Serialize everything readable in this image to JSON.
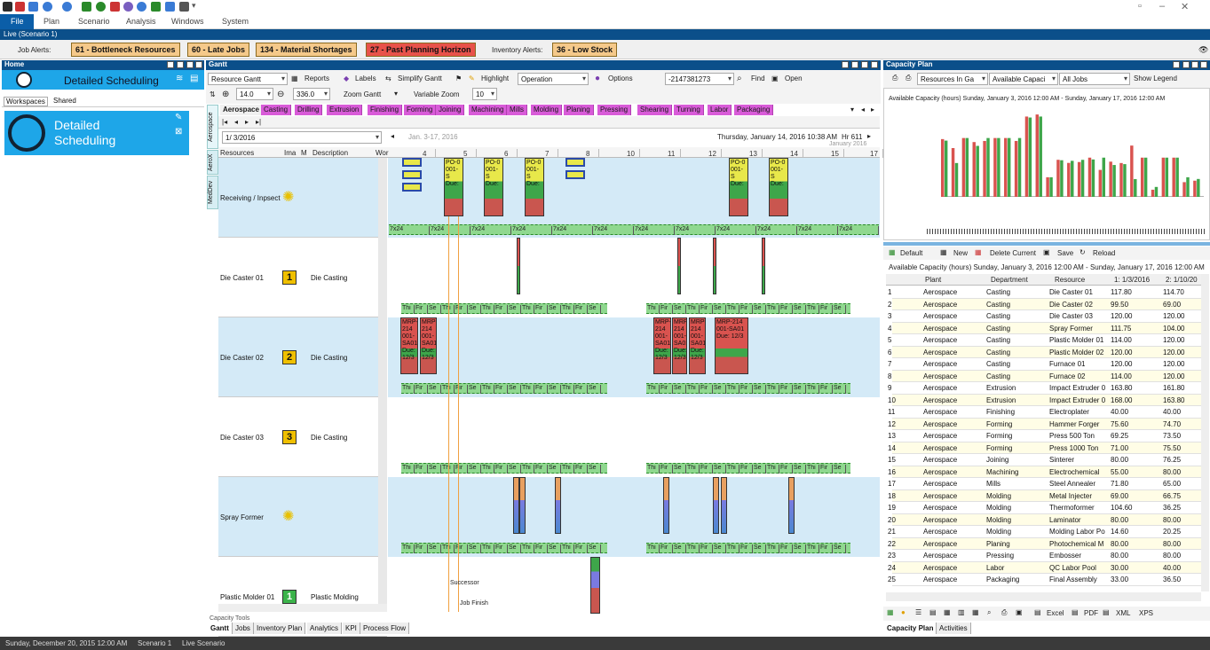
{
  "menu": {
    "file": "File",
    "items": [
      "Plan",
      "Scenario",
      "Analysis",
      "Windows",
      "System"
    ]
  },
  "live_bar": "Live (Scenario 1)",
  "alerts": {
    "job_label": "Job Alerts:",
    "inventory_label": "Inventory Alerts:",
    "job_alerts": [
      {
        "label": "61 - Bottleneck Resources",
        "color": "#f5c98a"
      },
      {
        "label": "60 - Late Jobs",
        "color": "#f5c98a"
      },
      {
        "label": "134 - Material Shortages",
        "color": "#f5c98a"
      },
      {
        "label": "27 - Past Planning Horizon",
        "color": "#e8524a"
      }
    ],
    "inventory_alerts": [
      {
        "label": "36 - Low Stock",
        "color": "#f5c98a"
      }
    ]
  },
  "home": {
    "title": "Home",
    "banner": "Detailed Scheduling",
    "tabs": [
      "Workspaces",
      "Shared"
    ],
    "tile": "Detailed Scheduling"
  },
  "gantt": {
    "title": "Gantt",
    "view_select": "Resource Gantt",
    "toolbar": [
      "Reports",
      "Labels",
      "Simplify Gantt",
      "Highlight"
    ],
    "highlight_select": "Operation",
    "options": "Options",
    "job_field": "-2147381273",
    "find": "Find",
    "open": "Open",
    "zoom_value1": "14.0",
    "zoom_value2": "336.0",
    "zoom_gantt": "Zoom Gantt",
    "variable_zoom": "Variable Zoom",
    "variable_zoom_value": "10",
    "plant_tabs": [
      "Aerospace",
      "Casting",
      "Drilling",
      "Extrusion",
      "Finishing",
      "Forming",
      "Joining",
      "Machining",
      "Mills",
      "Molding",
      "Planing",
      "Pressing",
      "Shearing",
      "Turning",
      "Labor",
      "Packaging"
    ],
    "side_tabs": [
      "Aerospace",
      "AeroX",
      "MedDev"
    ],
    "date_picker": "1/ 3/2016",
    "range_label": "Jan. 3-17, 2016",
    "current_date": "Thursday, January 14, 2016 10:38 AM",
    "hr_label": "Hr 611",
    "month_label": "January 2016",
    "columns": [
      "Resources",
      "Ima",
      "M",
      "Description",
      "Wor"
    ],
    "day_ticks": [
      "4",
      "5",
      "6",
      "7",
      "8",
      "10",
      "11",
      "12",
      "13",
      "14",
      "15",
      "17"
    ],
    "resources": [
      {
        "name": "Receiving / Inpsect",
        "badge": "gear",
        "desc": ""
      },
      {
        "name": "Die Caster 01",
        "badge": "1",
        "desc": "Die Casting"
      },
      {
        "name": "Die Caster 02",
        "badge": "2",
        "desc": "Die Casting"
      },
      {
        "name": "Die Caster 03",
        "badge": "3",
        "desc": "Die Casting"
      },
      {
        "name": "Spray Former",
        "badge": "gear",
        "desc": ""
      },
      {
        "name": "Plastic Molder 01",
        "badge": "1",
        "desc": "Plastic Molding"
      }
    ],
    "shift_7x24": "7x24",
    "shift_labels": [
      "Thi",
      "Fir",
      "Se"
    ],
    "mrp_label": "MRP-214 001-SA01 Due: 12/3",
    "po_label": "PO-0 001-S Due:",
    "successor": "Successor",
    "job_finish": "Job Finish",
    "capacity_tools": "Capacity Tools",
    "bottom_tabs": [
      "Gantt",
      "Jobs",
      "Inventory Plan",
      "Analytics",
      "KPI",
      "Process Flow"
    ]
  },
  "capacity": {
    "title": "Capacity Plan",
    "selects": [
      "Resources In Ga",
      "Available Capaci",
      "All Jobs"
    ],
    "show_legend": "Show Legend",
    "chart_title": "Available Capacity (hours) Sunday, January 3, 2016 12:00 AM - Sunday, January 17, 2016 12:00 AM",
    "toolbar": [
      "Default",
      "New",
      "Delete Current",
      "Save",
      "Reload"
    ],
    "grid_title": "Available Capacity (hours) Sunday, January 3, 2016 12:00 AM - Sunday, January 17, 2016 12:00 AM",
    "columns": [
      "Plant",
      "Department",
      "Resource",
      "1: 1/3/2016",
      "2: 1/10/20"
    ],
    "rows": [
      [
        "1",
        "Aerospace",
        "Casting",
        "Die Caster 01",
        "117.80",
        "114.70"
      ],
      [
        "2",
        "Aerospace",
        "Casting",
        "Die Caster 02",
        "99.50",
        "69.00"
      ],
      [
        "3",
        "Aerospace",
        "Casting",
        "Die Caster 03",
        "120.00",
        "120.00"
      ],
      [
        "4",
        "Aerospace",
        "Casting",
        "Spray Former",
        "111.75",
        "104.00"
      ],
      [
        "5",
        "Aerospace",
        "Casting",
        "Plastic Molder 01",
        "114.00",
        "120.00"
      ],
      [
        "6",
        "Aerospace",
        "Casting",
        "Plastic Molder 02",
        "120.00",
        "120.00"
      ],
      [
        "7",
        "Aerospace",
        "Casting",
        "Furnace 01",
        "120.00",
        "120.00"
      ],
      [
        "8",
        "Aerospace",
        "Casting",
        "Furnace 02",
        "114.00",
        "120.00"
      ],
      [
        "9",
        "Aerospace",
        "Extrusion",
        "Impact Extruder 0",
        "163.80",
        "161.80"
      ],
      [
        "10",
        "Aerospace",
        "Extrusion",
        "Impact Extruder 0",
        "168.00",
        "163.80"
      ],
      [
        "11",
        "Aerospace",
        "Finishing",
        "Electroplater",
        "40.00",
        "40.00"
      ],
      [
        "12",
        "Aerospace",
        "Forming",
        "Hammer Forger",
        "75.60",
        "74.70"
      ],
      [
        "13",
        "Aerospace",
        "Forming",
        "Press 500 Ton",
        "69.25",
        "73.50"
      ],
      [
        "14",
        "Aerospace",
        "Forming",
        "Press 1000 Ton",
        "71.00",
        "75.50"
      ],
      [
        "15",
        "Aerospace",
        "Joining",
        "Sinterer",
        "80.00",
        "76.25"
      ],
      [
        "16",
        "Aerospace",
        "Machining",
        "Electrochemical",
        "55.00",
        "80.00"
      ],
      [
        "17",
        "Aerospace",
        "Mills",
        "Steel Annealer",
        "71.80",
        "65.00"
      ],
      [
        "18",
        "Aerospace",
        "Molding",
        "Metal Injecter",
        "69.00",
        "66.75"
      ],
      [
        "19",
        "Aerospace",
        "Molding",
        "Thermoformer",
        "104.60",
        "36.25"
      ],
      [
        "20",
        "Aerospace",
        "Molding",
        "Laminator",
        "80.00",
        "80.00"
      ],
      [
        "21",
        "Aerospace",
        "Molding",
        "Molding Labor Po",
        "14.60",
        "20.25"
      ],
      [
        "22",
        "Aerospace",
        "Planing",
        "Photochemical M",
        "80.00",
        "80.00"
      ],
      [
        "23",
        "Aerospace",
        "Pressing",
        "Embosser",
        "80.00",
        "80.00"
      ],
      [
        "24",
        "Aerospace",
        "Labor",
        "QC Labor Pool",
        "30.00",
        "40.00"
      ],
      [
        "25",
        "Aerospace",
        "Packaging",
        "Final Assembly",
        "33.00",
        "36.50"
      ]
    ],
    "export": [
      "Excel",
      "PDF",
      "XML",
      "XPS"
    ],
    "bottom_tabs": [
      "Capacity Plan",
      "Activities"
    ]
  },
  "status": [
    "Sunday, December 20, 2015 12:00 AM",
    "Scenario 1",
    "Live Scenario"
  ],
  "colors": {
    "accent": "#0b4f8a",
    "tab_magenta": "#d85bd8",
    "bar_green": "#8fd88f",
    "op_red": "#d9534f",
    "op_green": "#3ea64a",
    "op_yellow": "#e8e84a"
  }
}
